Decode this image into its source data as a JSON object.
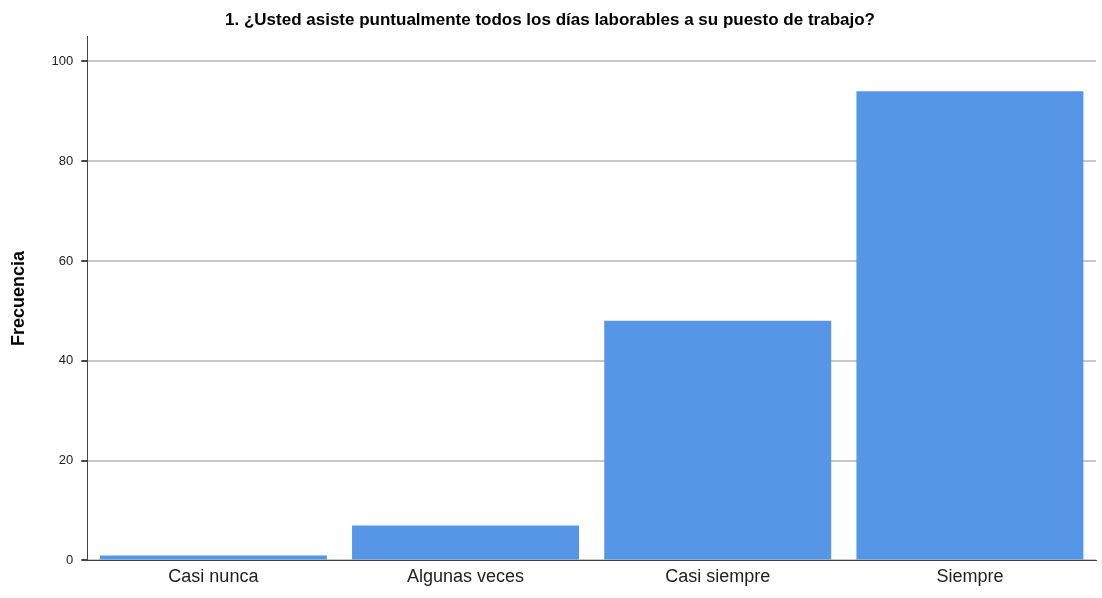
{
  "chart_data": {
    "type": "bar",
    "title": "1. ¿Usted asiste puntualmente todos los días laborables a su puesto de trabajo?",
    "ylabel": "Frecuencia",
    "categories": [
      "Casi nunca",
      "Algunas veces",
      "Casi siempre",
      "Siempre"
    ],
    "values": [
      1,
      7,
      48,
      94
    ],
    "color": "#5596e6",
    "ylim": [
      0,
      105
    ],
    "yticks": [
      0,
      20,
      40,
      60,
      80,
      100
    ],
    "grid": "y"
  }
}
